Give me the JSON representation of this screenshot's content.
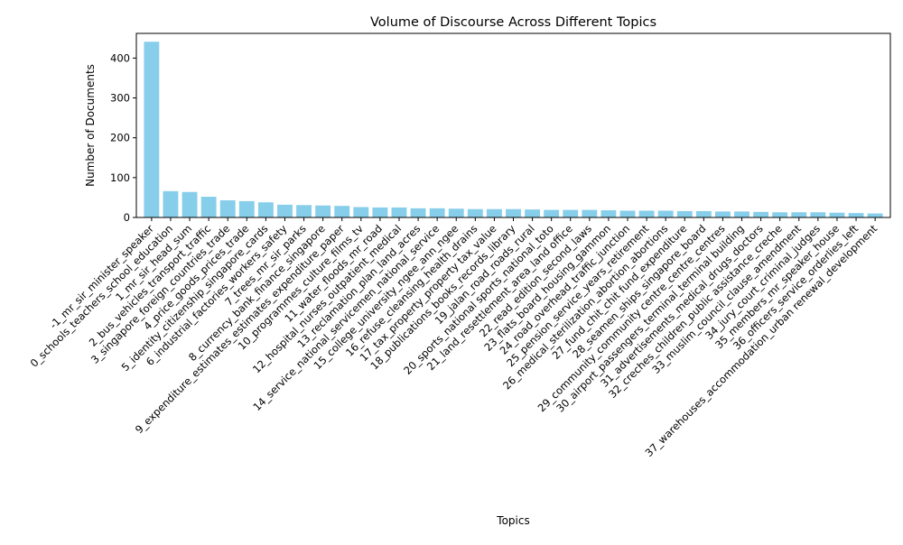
{
  "chart_data": {
    "type": "bar",
    "title": "Volume of Discourse Across Different Topics",
    "xlabel": "Topics",
    "ylabel": "Number of Documents",
    "ylim": [
      0,
      462
    ],
    "yticks": [
      0,
      100,
      200,
      300,
      400
    ],
    "grid": false,
    "bar_color": "#87ceeb",
    "categories": [
      "-1_mr_sir_minister_speaker",
      "0_schools_teachers_school_education",
      "1_mr_sir_head_sum",
      "2_bus_vehicles_transport_traffic",
      "3_singapore_foreign_countries_trade",
      "4_price_goods_prices_trade",
      "5_identity_citizenship_singapore_cards",
      "6_industrial_factories_workers_safety",
      "7_trees_mr_sir_parks",
      "8_currency_bank_finance_singapore",
      "9_expenditure_estimates_estimates_expenditure_paper",
      "10_programmes_culture_films_tv",
      "11_water_floods_mr_road",
      "12_hospital_nurses_outpatient_medical",
      "13_reclamation_plan_land_acres",
      "14_service_national_servicemen_national_service",
      "15_college_university_ngee_ann_ngee",
      "16_refuse_cleansing_health_drains",
      "17_tax_property_property tax_value",
      "18_publications_books_records_library",
      "19_jalan_road_roads_rural",
      "20_sports_national sports_national_toto",
      "21_land_resettlement_area_land office",
      "22_read_edition_second_laws",
      "23_flats_board_housing_gammon",
      "24_road_overhead_traffic_junction",
      "25_pension_service_years_retirement",
      "26_medical_sterilization_abortion_abortions",
      "27_fund_chit_chit fund_expenditure",
      "28_seamen_ships_singapore_board",
      "29_community_community centre_centre_centres",
      "30_airport_passengers_terminal_terminal building",
      "31_advertisements_medical_drugs_doctors",
      "32_creches_children_public assistance_creche",
      "33_muslim_council_clause_amendment",
      "34_jury_court_criminal_judges",
      "35_members_mr_speaker_house",
      "36_officers_service_orderlies_left",
      "37_warehouses_accommodation_urban renewal_development"
    ],
    "values": [
      441,
      66,
      64,
      52,
      43,
      41,
      38,
      32,
      31,
      30,
      29,
      26,
      25,
      25,
      23,
      23,
      22,
      21,
      21,
      21,
      20,
      19,
      19,
      19,
      18,
      17,
      17,
      17,
      16,
      16,
      15,
      15,
      14,
      13,
      13,
      13,
      12,
      11,
      10
    ]
  }
}
